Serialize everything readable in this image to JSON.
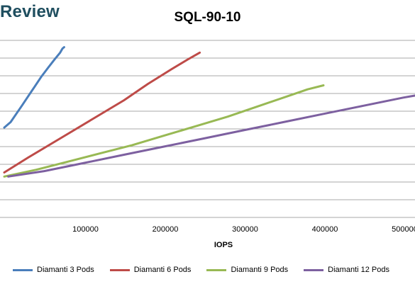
{
  "header": {
    "brand_text": "Review"
  },
  "chart_data": {
    "type": "line",
    "title": "SQL-90-10",
    "xlabel": "IOPS",
    "ylabel": "",
    "xlim": [
      0,
      520000
    ],
    "x_ticks": [
      100000,
      200000,
      300000,
      400000,
      500000
    ],
    "x_tick_labels": [
      "100000",
      "200000",
      "300000",
      "400000",
      "500000"
    ],
    "grid": "horizontal",
    "legend_position": "bottom",
    "series": [
      {
        "name": "Diamanti 3 Pods",
        "color": "#4a7ebb",
        "points": [
          [
            0,
            0.66
          ],
          [
            8000,
            0.7
          ],
          [
            15000,
            0.76
          ],
          [
            22000,
            0.82
          ],
          [
            30000,
            0.89
          ],
          [
            38000,
            0.96
          ],
          [
            46000,
            1.03
          ],
          [
            55000,
            1.1
          ],
          [
            63000,
            1.16
          ],
          [
            70000,
            1.21
          ],
          [
            73000,
            1.24
          ],
          [
            75000,
            1.25
          ]
        ]
      },
      {
        "name": "Diamanti 6 Pods",
        "color": "#be4b48",
        "points": [
          [
            0,
            0.33
          ],
          [
            30000,
            0.44
          ],
          [
            70000,
            0.58
          ],
          [
            110000,
            0.72
          ],
          [
            150000,
            0.86
          ],
          [
            180000,
            0.98
          ],
          [
            210000,
            1.09
          ],
          [
            230000,
            1.16
          ],
          [
            245000,
            1.21
          ]
        ]
      },
      {
        "name": "Diamanti 9 Pods",
        "color": "#98b954",
        "points": [
          [
            0,
            0.3
          ],
          [
            40000,
            0.35
          ],
          [
            80000,
            0.41
          ],
          [
            120000,
            0.47
          ],
          [
            160000,
            0.53
          ],
          [
            200000,
            0.6
          ],
          [
            240000,
            0.67
          ],
          [
            280000,
            0.74
          ],
          [
            320000,
            0.82
          ],
          [
            360000,
            0.9
          ],
          [
            380000,
            0.94
          ],
          [
            400000,
            0.97
          ]
        ]
      },
      {
        "name": "Diamanti 12 Pods",
        "color": "#7d60a0",
        "points": [
          [
            5000,
            0.3
          ],
          [
            50000,
            0.34
          ],
          [
            100000,
            0.4
          ],
          [
            150000,
            0.46
          ],
          [
            200000,
            0.52
          ],
          [
            250000,
            0.58
          ],
          [
            300000,
            0.64
          ],
          [
            350000,
            0.7
          ],
          [
            400000,
            0.76
          ],
          [
            450000,
            0.82
          ],
          [
            500000,
            0.88
          ],
          [
            520000,
            0.9
          ]
        ]
      }
    ]
  }
}
